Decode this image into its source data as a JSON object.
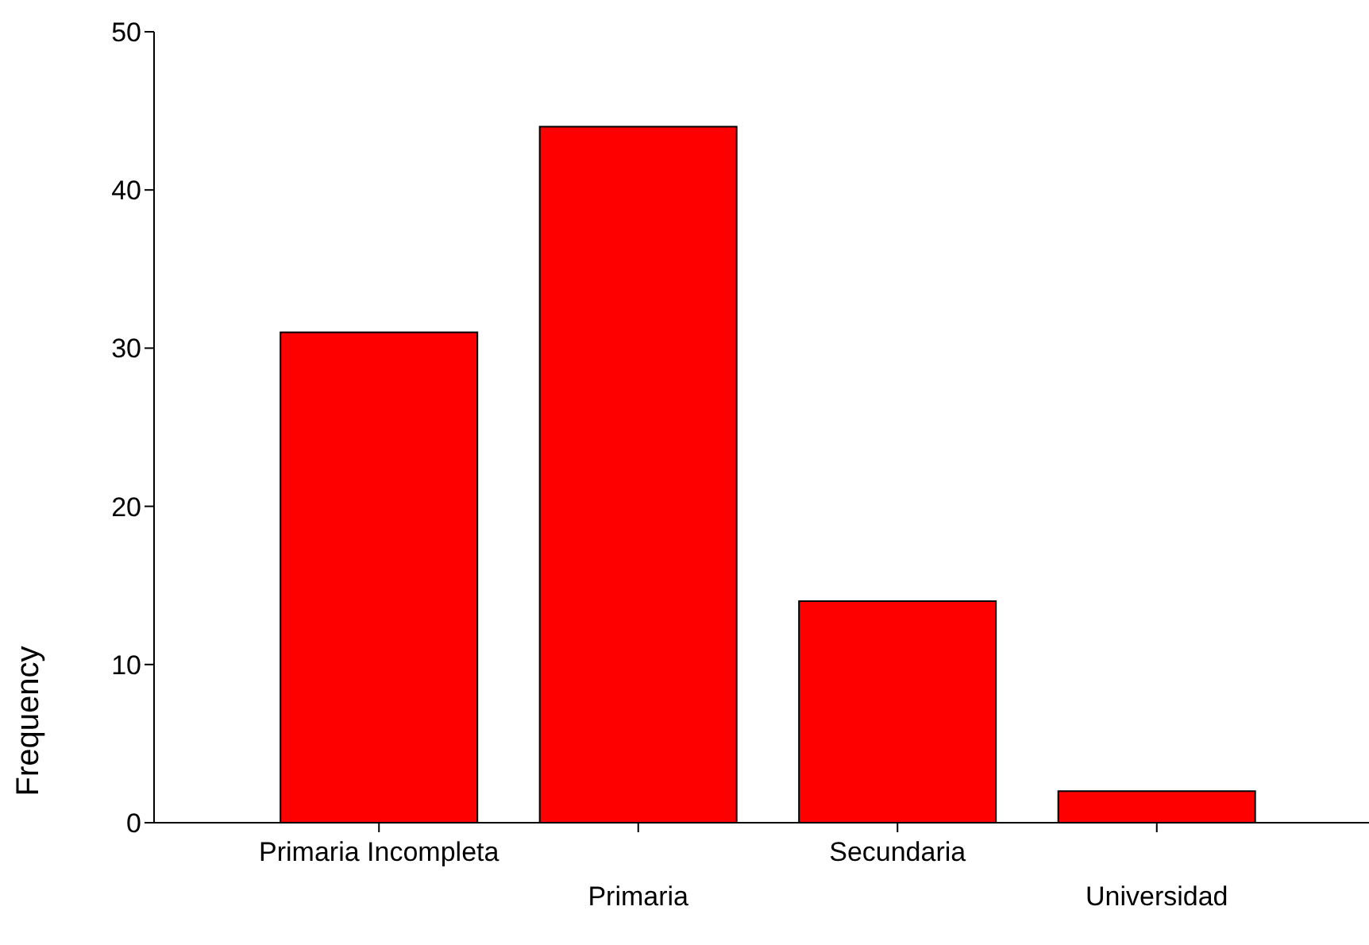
{
  "chart_data": {
    "type": "bar",
    "ylabel": "Frequency",
    "categories": [
      "Primaria Incompleta",
      "Primaria",
      "Secundaria",
      "Universidad"
    ],
    "values": [
      31,
      44,
      14,
      2
    ],
    "color": "#ff0000",
    "ylim": [
      0,
      50
    ],
    "yticks": [
      0,
      10,
      20,
      30,
      40,
      50
    ],
    "grid": false
  }
}
